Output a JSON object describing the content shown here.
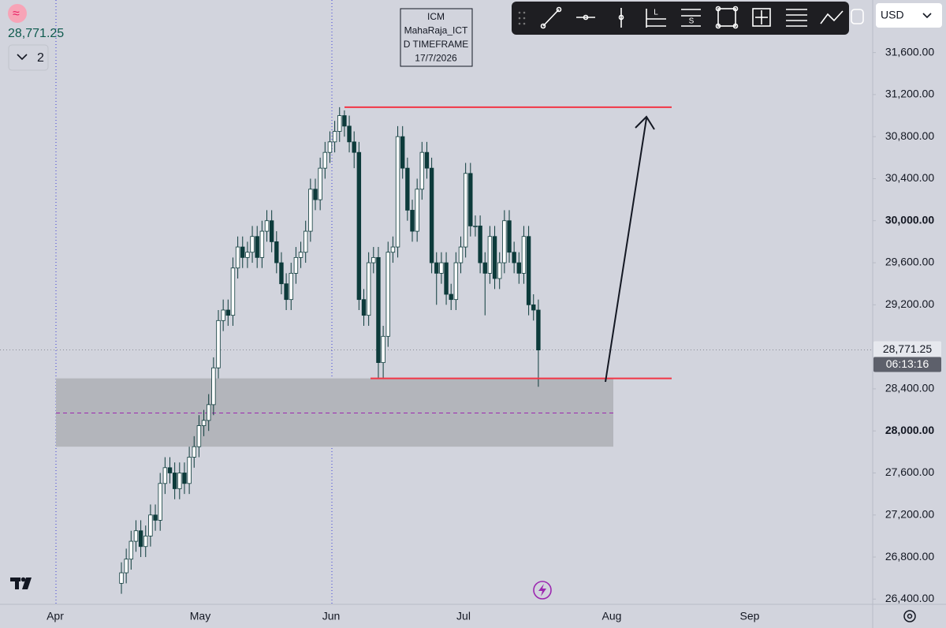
{
  "chart_data": {
    "type": "candlestick",
    "current_price": {
      "value": 28771.25,
      "label": "28,771.25"
    },
    "countdown": "06:13:16",
    "indicator_count": "2",
    "currency": "USD",
    "watermark": [
      "ICM",
      "MahaRaja_ICT",
      "D TIMEFRAME",
      "17/7/2026"
    ],
    "x_labels": [
      "Apr",
      "May",
      "Jun",
      "Jul",
      "Aug",
      "Sep"
    ],
    "up_color": "#ffffff",
    "down_color": "#0d3b3b",
    "open": [
      26550,
      26650,
      26780,
      26950,
      27050,
      26900,
      27000,
      27200,
      27150,
      27500,
      27650,
      27600,
      27450,
      27600,
      27500,
      27750,
      27850,
      28050,
      28100,
      28250,
      28600,
      29050,
      29150,
      29100,
      29550,
      29750,
      29650,
      29700,
      29850,
      29650,
      29900,
      30000,
      29800,
      29600,
      29400,
      29250,
      29500,
      29650,
      29700,
      29900,
      30300,
      30200,
      30500,
      30650,
      30750,
      30850,
      31000,
      30900,
      30750,
      30650,
      29250,
      29100,
      29600,
      29650,
      28650,
      28900,
      29700,
      29750,
      30800,
      30500,
      30100,
      29900,
      30300,
      30650,
      30500,
      29600,
      29500,
      29600,
      29300,
      29250,
      29600,
      29750,
      30450,
      29950,
      29950,
      29600,
      29500,
      29850,
      29450,
      29600,
      30000,
      29700,
      29600,
      29500,
      29850,
      29200,
      29150
    ],
    "high": [
      26750,
      26880,
      27050,
      27150,
      27150,
      27100,
      27300,
      27300,
      27600,
      27750,
      27750,
      27700,
      27700,
      27700,
      27850,
      27950,
      28150,
      28200,
      28350,
      28700,
      29150,
      29250,
      29250,
      29650,
      29850,
      29850,
      29800,
      29950,
      29950,
      30000,
      30100,
      30100,
      29900,
      29700,
      29500,
      29600,
      29750,
      29800,
      30000,
      30400,
      30400,
      30600,
      30750,
      30850,
      30950,
      31080,
      31050,
      31000,
      30850,
      30750,
      29350,
      29700,
      29750,
      29750,
      29000,
      29800,
      29850,
      30900,
      30900,
      30600,
      30200,
      30400,
      30750,
      30750,
      30600,
      29700,
      29700,
      29700,
      29400,
      29700,
      29850,
      30550,
      30550,
      30050,
      30050,
      29700,
      29950,
      29950,
      29700,
      30100,
      30100,
      29800,
      29700,
      29950,
      29950,
      29300,
      29250
    ],
    "low": [
      26450,
      26550,
      26680,
      26850,
      26800,
      26800,
      26900,
      27050,
      27050,
      27400,
      27500,
      27350,
      27350,
      27400,
      27400,
      27650,
      27750,
      27950,
      28000,
      28150,
      28500,
      28950,
      29000,
      29000,
      29450,
      29550,
      29550,
      29600,
      29550,
      29550,
      29800,
      29700,
      29500,
      29300,
      29150,
      29150,
      29400,
      29550,
      29600,
      29800,
      30100,
      30100,
      30400,
      30550,
      30650,
      30750,
      30800,
      30650,
      30500,
      29150,
      29000,
      29000,
      29500,
      28500,
      28500,
      28800,
      29600,
      29650,
      30400,
      30000,
      29800,
      29800,
      30200,
      30400,
      29500,
      29200,
      29400,
      29200,
      29150,
      29150,
      29500,
      29650,
      29850,
      29850,
      29500,
      29100,
      29400,
      29350,
      29350,
      29500,
      29600,
      29500,
      29400,
      29400,
      29100,
      29050,
      28420
    ],
    "close": [
      26650,
      26780,
      26950,
      27050,
      26900,
      27000,
      27200,
      27150,
      27500,
      27650,
      27600,
      27450,
      27600,
      27500,
      27750,
      27850,
      28050,
      28100,
      28250,
      28600,
      29050,
      29150,
      29100,
      29550,
      29750,
      29650,
      29700,
      29850,
      29650,
      29900,
      30000,
      29800,
      29600,
      29400,
      29250,
      29500,
      29650,
      29700,
      29900,
      30300,
      30200,
      30500,
      30650,
      30750,
      30850,
      31000,
      30900,
      30750,
      30650,
      29250,
      29100,
      29600,
      29650,
      28650,
      28900,
      29700,
      29750,
      30800,
      30500,
      30100,
      29900,
      30300,
      30650,
      30500,
      29600,
      29500,
      29600,
      29300,
      29250,
      29600,
      29750,
      30450,
      29950,
      29950,
      29600,
      29500,
      29850,
      29450,
      29600,
      30000,
      29700,
      29600,
      29500,
      29850,
      29200,
      29150,
      28770
    ],
    "levels": [
      {
        "value": 31080,
        "color": "#f23645"
      },
      {
        "value": 28500,
        "color": "#f23645"
      }
    ],
    "zone": {
      "top": 28500,
      "bottom": 27850,
      "mid": 28170
    },
    "ylim": [
      26350,
      32100
    ],
    "yticks": [
      {
        "value": 26400,
        "label": "26,400.00"
      },
      {
        "value": 26800,
        "label": "26,800.00"
      },
      {
        "value": 27200,
        "label": "27,200.00"
      },
      {
        "value": 27600,
        "label": "27,600.00"
      },
      {
        "value": 28000,
        "label": "28,000.00"
      },
      {
        "value": 28400,
        "label": "28,400.00"
      },
      {
        "value": 29200,
        "label": "29,200.00"
      },
      {
        "value": 29600,
        "label": "29,600.00"
      },
      {
        "value": 30000,
        "label": "30,000.00"
      },
      {
        "value": 30400,
        "label": "30,400.00"
      },
      {
        "value": 30800,
        "label": "30,800.00"
      },
      {
        "value": 31200,
        "label": "31,200.00"
      },
      {
        "value": 31600,
        "label": "31,600.00"
      }
    ]
  },
  "toolbar_letters": [
    "L",
    "S"
  ]
}
